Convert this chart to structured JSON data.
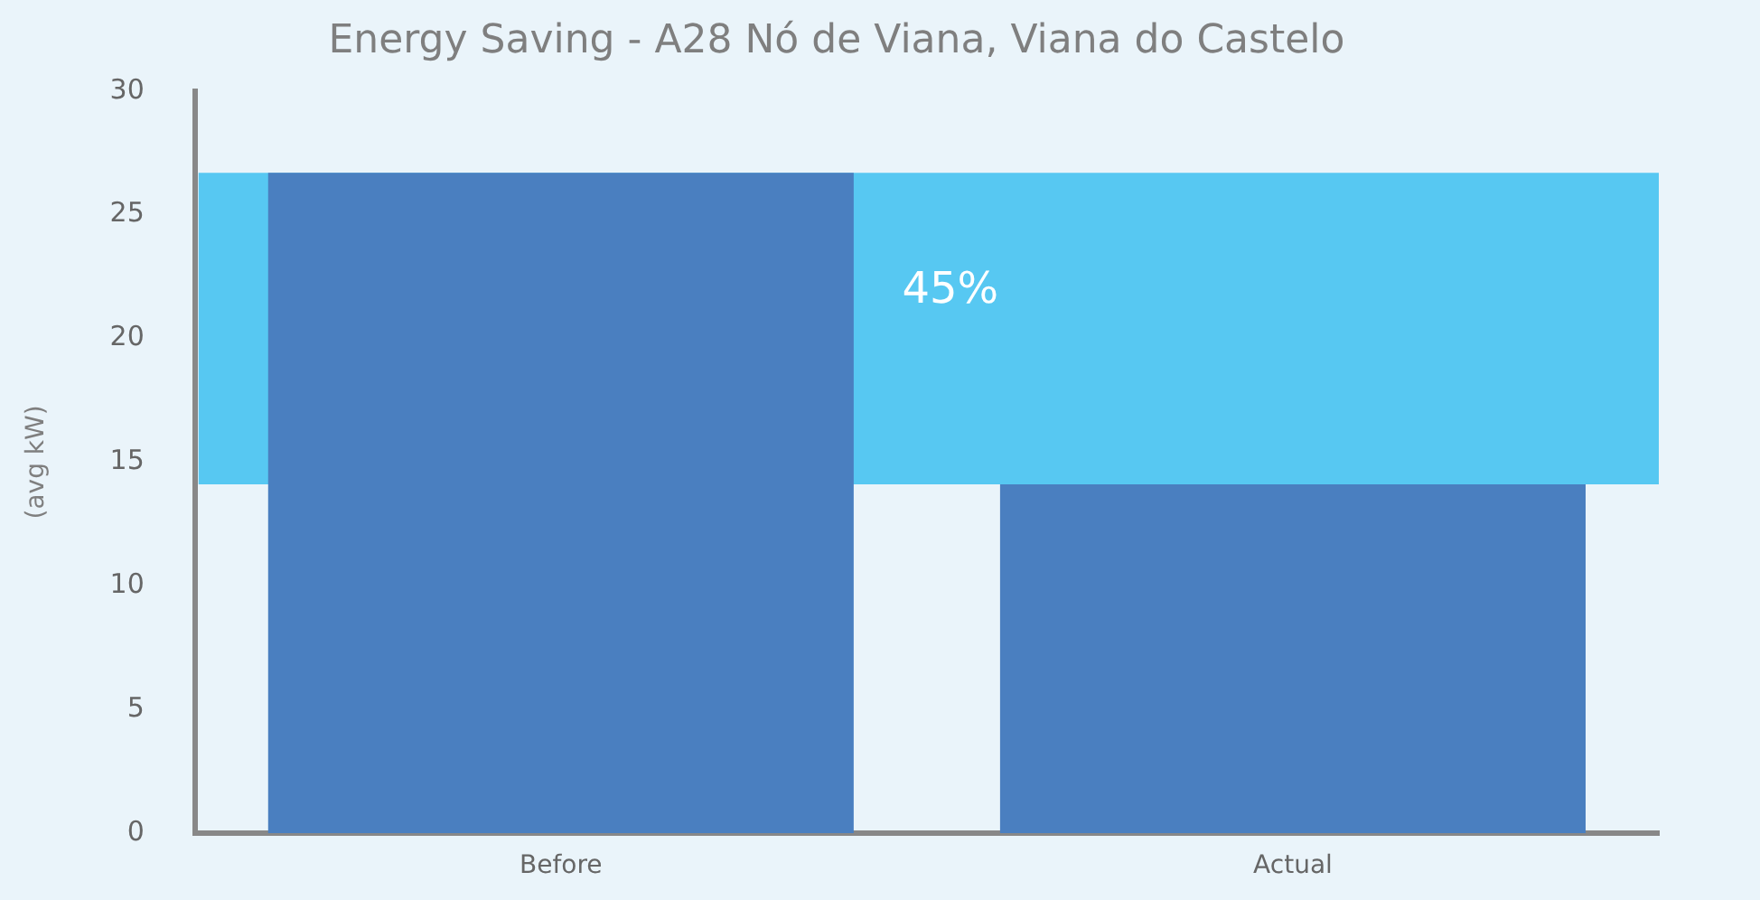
{
  "chart_data": {
    "type": "bar",
    "title": "Energy Saving - A28 Nó de Viana, Viana do Castelo",
    "ylabel": "(avg kW)",
    "categories": [
      "Before",
      "Actual"
    ],
    "values": [
      26.7,
      14.1
    ],
    "color": "#4a7fc0",
    "ylim": [
      0,
      30
    ],
    "yticks": [
      0,
      5,
      10,
      15,
      20,
      25,
      30
    ],
    "grid": false,
    "legend": false,
    "bands": [
      {
        "axis": "y",
        "from": 14.1,
        "to": 26.7,
        "label": "45%",
        "color": "#57c8f2"
      }
    ]
  }
}
